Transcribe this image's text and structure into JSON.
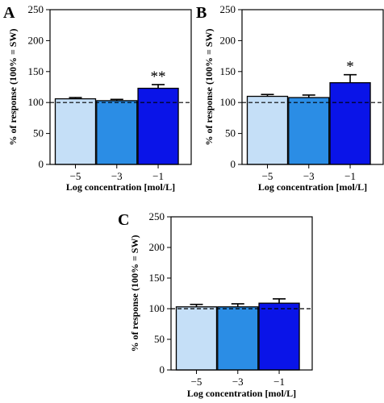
{
  "chart_data": [
    {
      "type": "bar",
      "panel": "A",
      "categories": [
        "−5",
        "−3",
        "−1"
      ],
      "values": [
        106,
        103,
        123
      ],
      "errors": [
        2,
        2,
        6
      ],
      "significance": [
        "",
        "",
        "**"
      ],
      "colors": [
        "#c5dff7",
        "#2b8de5",
        "#0a14e8"
      ],
      "xlabel": "Log concentration [mol/L]",
      "ylabel": "% of response (100% = SW)",
      "ylim": [
        0,
        250
      ],
      "yticks": [
        0,
        50,
        100,
        150,
        200,
        250
      ],
      "reference_line": 100
    },
    {
      "type": "bar",
      "panel": "B",
      "categories": [
        "−5",
        "−3",
        "−1"
      ],
      "values": [
        110,
        108,
        132
      ],
      "errors": [
        3,
        4,
        13
      ],
      "significance": [
        "",
        "",
        "*"
      ],
      "colors": [
        "#c5dff7",
        "#2b8de5",
        "#0a14e8"
      ],
      "xlabel": "Log concentration [mol/L]",
      "ylabel": "% of response (100% = SW)",
      "ylim": [
        0,
        250
      ],
      "yticks": [
        0,
        50,
        100,
        150,
        200,
        250
      ],
      "reference_line": 100
    },
    {
      "type": "bar",
      "panel": "C",
      "categories": [
        "−5",
        "−3",
        "−1"
      ],
      "values": [
        103,
        103,
        109
      ],
      "errors": [
        4,
        5,
        7
      ],
      "significance": [
        "",
        "",
        ""
      ],
      "colors": [
        "#c5dff7",
        "#2b8de5",
        "#0a14e8"
      ],
      "xlabel": "Log concentration [mol/L]",
      "ylabel": "% of response (100% = SW)",
      "ylim": [
        0,
        250
      ],
      "yticks": [
        0,
        50,
        100,
        150,
        200,
        250
      ],
      "reference_line": 100
    }
  ]
}
